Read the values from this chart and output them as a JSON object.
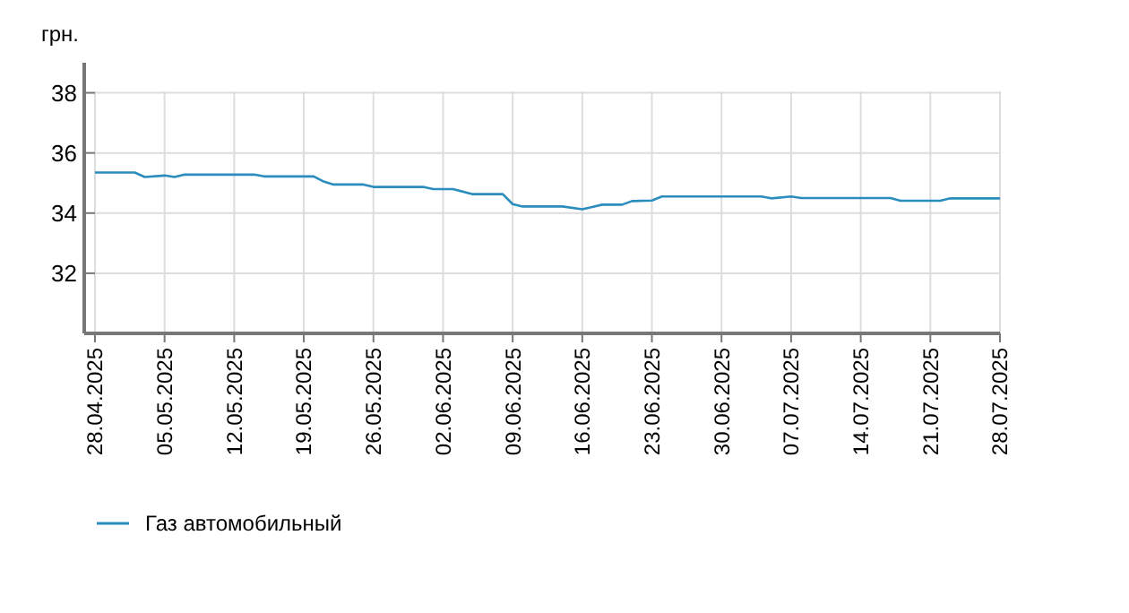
{
  "chart_data": {
    "type": "line",
    "ylabel": "грн.",
    "x": [
      "2025-04-28",
      "2025-05-02",
      "2025-05-03",
      "2025-05-05",
      "2025-05-06",
      "2025-05-07",
      "2025-05-14",
      "2025-05-15",
      "2025-05-20",
      "2025-05-21",
      "2025-05-22",
      "2025-05-25",
      "2025-05-26",
      "2025-05-31",
      "2025-06-01",
      "2025-06-03",
      "2025-06-05",
      "2025-06-08",
      "2025-06-09",
      "2025-06-10",
      "2025-06-14",
      "2025-06-16",
      "2025-06-17",
      "2025-06-18",
      "2025-06-20",
      "2025-06-21",
      "2025-06-23",
      "2025-06-24",
      "2025-07-04",
      "2025-07-05",
      "2025-07-07",
      "2025-07-08",
      "2025-07-17",
      "2025-07-18",
      "2025-07-22",
      "2025-07-23",
      "2025-07-28"
    ],
    "series": [
      {
        "name": "Газ автомобильный",
        "color": "#2b8cbe",
        "values": [
          35.35,
          35.35,
          35.2,
          35.25,
          35.2,
          35.28,
          35.28,
          35.22,
          35.22,
          35.05,
          34.95,
          34.95,
          34.87,
          34.87,
          34.8,
          34.8,
          34.63,
          34.63,
          34.3,
          34.22,
          34.22,
          34.13,
          34.2,
          34.28,
          34.28,
          34.4,
          34.42,
          34.55,
          34.55,
          34.49,
          34.55,
          34.5,
          34.5,
          34.41,
          34.41,
          34.49,
          34.49
        ]
      }
    ],
    "xlim": [
      "2025-04-28",
      "2025-07-28"
    ],
    "xticks": [
      {
        "value": "2025-04-28",
        "label": "28.04.2025"
      },
      {
        "value": "2025-05-05",
        "label": "05.05.2025"
      },
      {
        "value": "2025-05-12",
        "label": "12.05.2025"
      },
      {
        "value": "2025-05-19",
        "label": "19.05.2025"
      },
      {
        "value": "2025-05-26",
        "label": "26.05.2025"
      },
      {
        "value": "2025-06-02",
        "label": "02.06.2025"
      },
      {
        "value": "2025-06-09",
        "label": "09.06.2025"
      },
      {
        "value": "2025-06-16",
        "label": "16.06.2025"
      },
      {
        "value": "2025-06-23",
        "label": "23.06.2025"
      },
      {
        "value": "2025-06-30",
        "label": "30.06.2025"
      },
      {
        "value": "2025-07-07",
        "label": "07.07.2025"
      },
      {
        "value": "2025-07-14",
        "label": "14.07.2025"
      },
      {
        "value": "2025-07-21",
        "label": "21.07.2025"
      },
      {
        "value": "2025-07-28",
        "label": "28.07.2025"
      }
    ],
    "ylim": [
      30,
      39
    ],
    "yticks": [
      32,
      34,
      36,
      38
    ],
    "grid": true,
    "legend": "bottom left",
    "marker": "none",
    "line_style": "solid"
  }
}
